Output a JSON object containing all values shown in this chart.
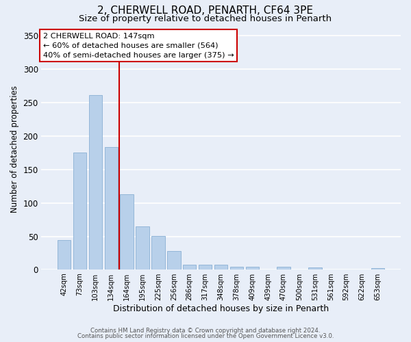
{
  "title": "2, CHERWELL ROAD, PENARTH, CF64 3PE",
  "subtitle": "Size of property relative to detached houses in Penarth",
  "xlabel": "Distribution of detached houses by size in Penarth",
  "ylabel": "Number of detached properties",
  "categories": [
    "42sqm",
    "73sqm",
    "103sqm",
    "134sqm",
    "164sqm",
    "195sqm",
    "225sqm",
    "256sqm",
    "286sqm",
    "317sqm",
    "348sqm",
    "378sqm",
    "409sqm",
    "439sqm",
    "470sqm",
    "500sqm",
    "531sqm",
    "561sqm",
    "592sqm",
    "622sqm",
    "653sqm"
  ],
  "values": [
    44,
    175,
    261,
    184,
    113,
    65,
    51,
    28,
    8,
    8,
    8,
    4,
    4,
    0,
    4,
    0,
    3,
    0,
    0,
    0,
    2
  ],
  "bar_color": "#b8d0ea",
  "bar_edge_color": "#8ab0d4",
  "vline_x_idx": 3,
  "vline_color": "#cc0000",
  "ylim": [
    0,
    360
  ],
  "yticks": [
    0,
    50,
    100,
    150,
    200,
    250,
    300,
    350
  ],
  "annotation_title": "2 CHERWELL ROAD: 147sqm",
  "annotation_line1": "← 60% of detached houses are smaller (564)",
  "annotation_line2": "40% of semi-detached houses are larger (375) →",
  "annotation_box_color": "#ffffff",
  "annotation_box_edge": "#cc0000",
  "footer1": "Contains HM Land Registry data © Crown copyright and database right 2024.",
  "footer2": "Contains public sector information licensed under the Open Government Licence v3.0.",
  "bg_color": "#e8eef8",
  "plot_bg_color": "#e8eef8",
  "grid_color": "#ffffff",
  "title_fontsize": 11,
  "subtitle_fontsize": 9.5
}
